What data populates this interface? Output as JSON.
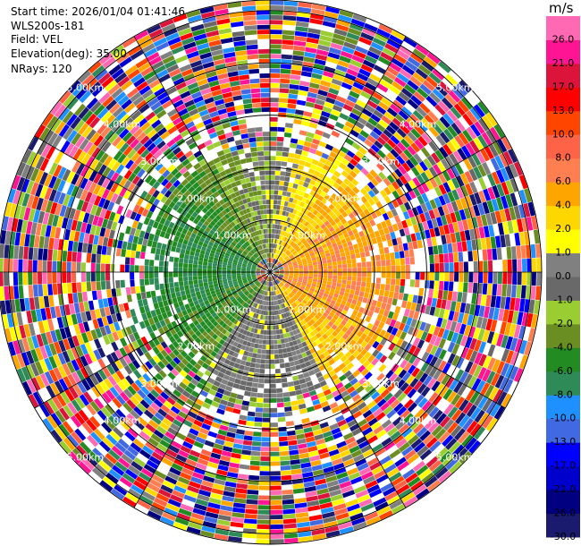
{
  "header": {
    "start_time": "Start time: 2026/01/04 01:41:46",
    "instrument": "WLS200s-181",
    "field": "Field: VEL",
    "elevation": "Elevation(deg): 35.00",
    "nrays": "NRays: 120"
  },
  "chart_data": {
    "type": "heatmap",
    "projection": "polar-ppi",
    "field": "VEL",
    "units": "m/s",
    "range_rings_km": [
      1,
      2,
      3,
      4,
      5
    ],
    "ring_labels": [
      "1.00km",
      "2.00km",
      "3.00km",
      "4.00km",
      "5.00km"
    ],
    "max_range_km": 5.2,
    "n_rays": 120,
    "colorbar": {
      "title": "m/s",
      "bounds": [
        -30.0,
        -26.0,
        -21.0,
        -17.0,
        -13.0,
        -10.0,
        -8.0,
        -6.0,
        -4.0,
        -2.0,
        -1.0,
        0.0,
        1.0,
        2.0,
        4.0,
        6.0,
        8.0,
        10.0,
        13.0,
        17.0,
        21.0,
        26.0,
        30.0
      ],
      "tick_labels": [
        "-30.0",
        "-26.0",
        "-21.0",
        "-17.0",
        "-13.0",
        "-10.0",
        "-8.0",
        "-6.0",
        "-4.0",
        "-2.0",
        "-1.0",
        "0.0",
        "1.0",
        "2.0",
        "4.0",
        "6.0",
        "8.0",
        "10.0",
        "13.0",
        "17.0",
        "21.0",
        "26.0"
      ],
      "colors": [
        "#1a1a6e",
        "#000080",
        "#0000cd",
        "#0000ff",
        "#4169e1",
        "#1e90ff",
        "#2e8b57",
        "#228b22",
        "#6b8e23",
        "#9acd32",
        "#696969",
        "#808080",
        "#ffff00",
        "#ffd700",
        "#ffa500",
        "#ff7f50",
        "#ff6347",
        "#ff4500",
        "#ff0000",
        "#dc143c",
        "#ff1493",
        "#ff69b4"
      ]
    }
  },
  "colors": {
    "ring": "#000000",
    "ring_label": "#ffffff"
  }
}
